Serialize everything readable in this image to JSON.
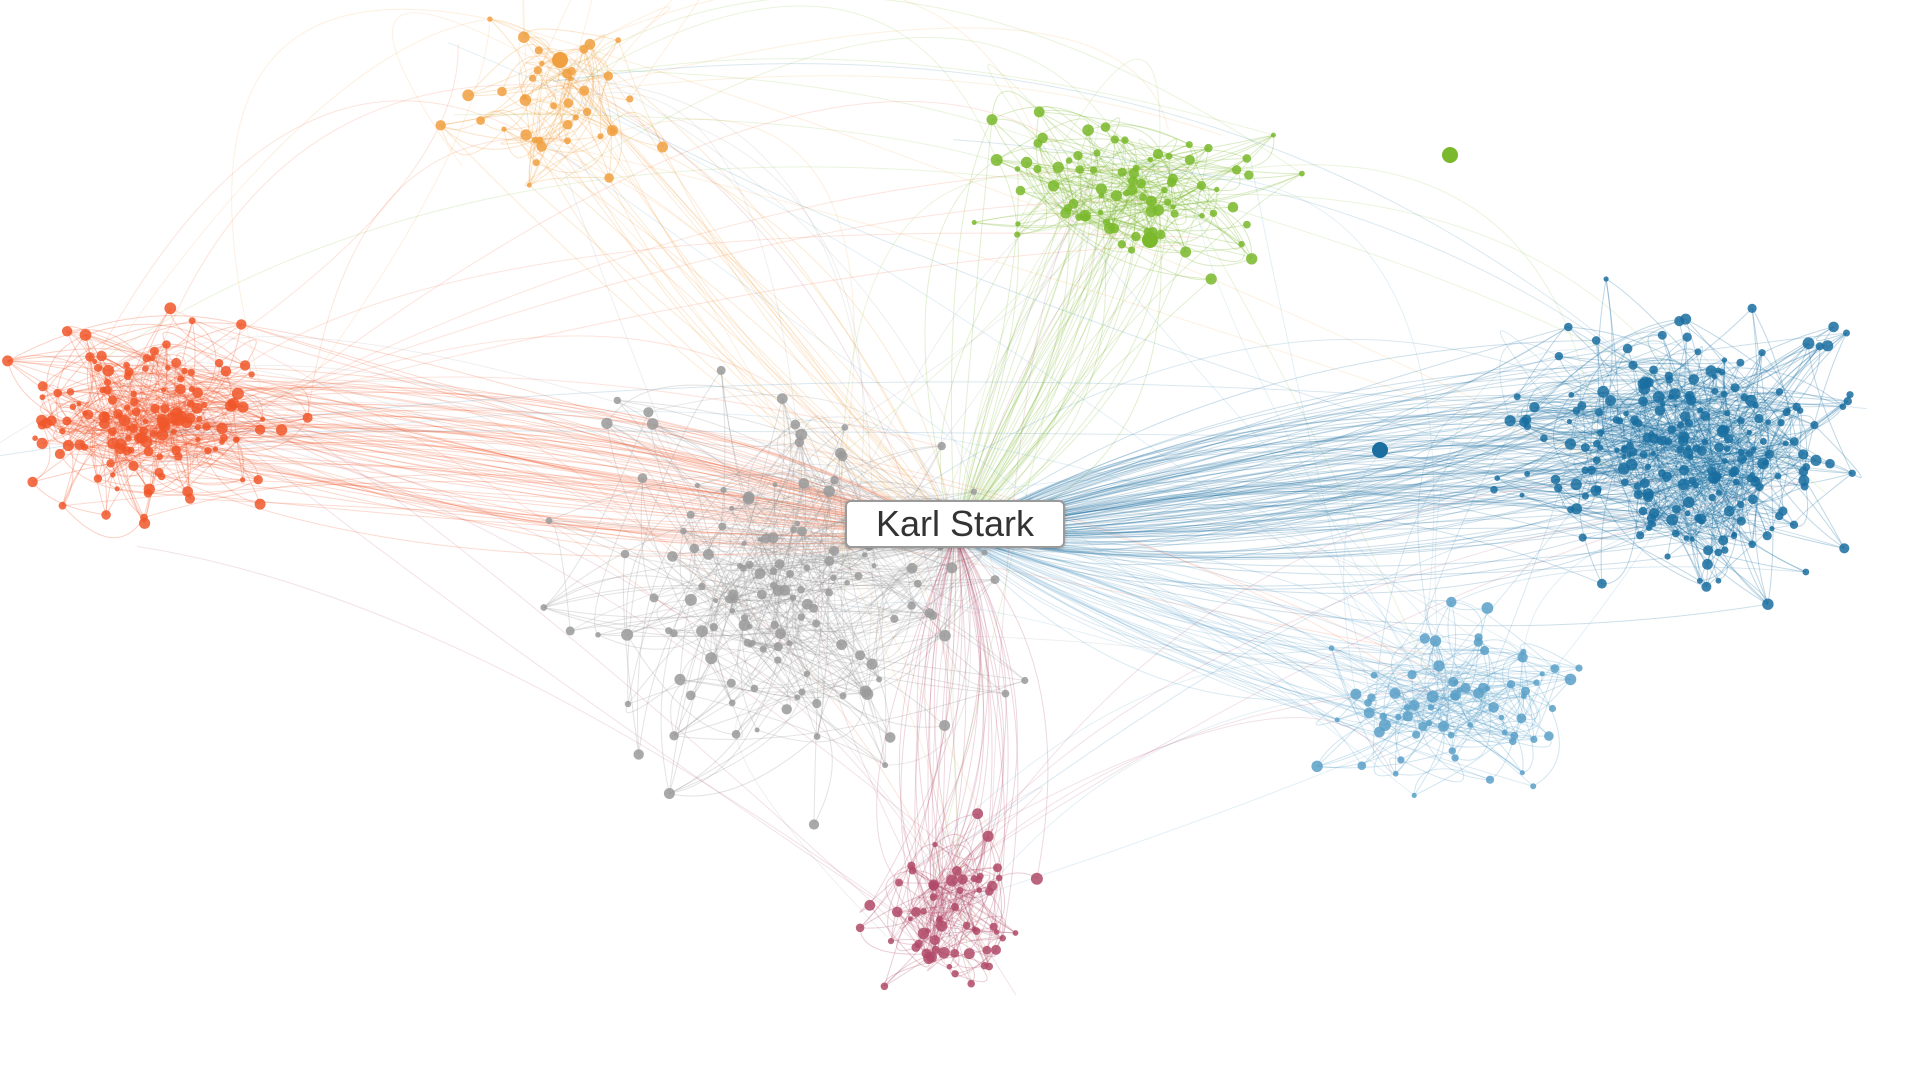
{
  "center": {
    "label": "Karl Stark",
    "color": "#9a9a9a"
  },
  "clusters": [
    {
      "name": "orange-red",
      "color": "#f0572a"
    },
    {
      "name": "amber",
      "color": "#f0a040"
    },
    {
      "name": "green",
      "color": "#7ab82c"
    },
    {
      "name": "blue",
      "color": "#1a6fa0"
    },
    {
      "name": "light-blue",
      "color": "#5aa0c8"
    },
    {
      "name": "gray",
      "color": "#9a9a9a"
    },
    {
      "name": "maroon",
      "color": "#b04a68"
    }
  ]
}
